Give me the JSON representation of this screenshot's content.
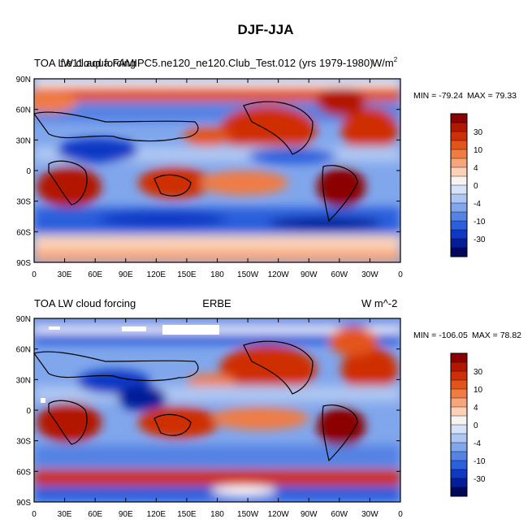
{
  "title": "DJF-JJA",
  "colorbar": {
    "tick_labels": [
      "30",
      "10",
      "4",
      "0",
      "-4",
      "-10",
      "-30"
    ],
    "colors": [
      "#8b0000",
      "#b31700",
      "#cf2f06",
      "#e3541a",
      "#f07c44",
      "#f7a57a",
      "#fcd1b8",
      "#f7f3f0",
      "#d6e2f7",
      "#adc6f2",
      "#80a6ec",
      "#5483e4",
      "#2c5fdc",
      "#0f39c4",
      "#041e98",
      "#00085c"
    ]
  },
  "lat_labels": [
    "90N",
    "60N",
    "30N",
    "0",
    "30S",
    "60S",
    "90S"
  ],
  "lon_labels": [
    "0",
    "30E",
    "60E",
    "90E",
    "120E",
    "150E",
    "180",
    "150W",
    "120W",
    "90W",
    "60W",
    "30W",
    "0"
  ],
  "panels": [
    {
      "left_title": "TOA LW cloud forcing",
      "center_title": "f.e11.aqua.FAMIPC5.ne120_ne120.Club_Test.012 (yrs 1979-1980)",
      "units": "W/m",
      "units_sup": "2",
      "min_label": "MIN = -79.24",
      "max_label": "MAX =  79.33"
    },
    {
      "left_title": "TOA LW cloud forcing",
      "center_title": "ERBE",
      "units": "W m^-2",
      "units_sup": "",
      "min_label": "MIN = -106.05",
      "max_label": "MAX =  78.82"
    }
  ]
}
